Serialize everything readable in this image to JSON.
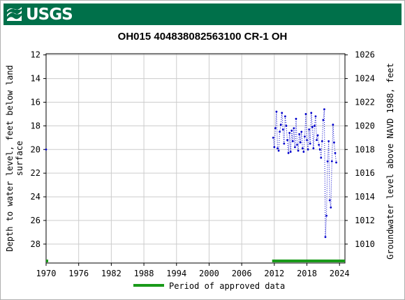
{
  "logo": {
    "text": "USGS"
  },
  "chart_data": {
    "type": "scatter",
    "title": "OH015 404838082563100 CR-1 OH",
    "ylabel_left": "Depth to water level, feet below land surface",
    "ylabel_right": "Groundwater level above NAVD 1988, feet",
    "xlim": [
      1970,
      2025
    ],
    "ylim": [
      29.6,
      11.9
    ],
    "y_ticks": [
      12,
      14,
      16,
      18,
      20,
      22,
      24,
      26,
      28
    ],
    "y2_ticks": [
      1026,
      1024,
      1022,
      1020,
      1018,
      1016,
      1014,
      1012,
      1010
    ],
    "x_ticks": [
      1970,
      1976,
      1982,
      1988,
      1994,
      2000,
      2006,
      2012,
      2018,
      2024
    ],
    "grid": true,
    "series": [
      {
        "color": "#0000cc",
        "points": [
          [
            1970.0,
            20.0
          ],
          [
            2011.8,
            19.0
          ],
          [
            2012.0,
            19.8
          ],
          [
            2012.2,
            18.2
          ],
          [
            2012.4,
            16.8
          ],
          [
            2012.6,
            19.9
          ],
          [
            2012.8,
            20.1
          ],
          [
            2013.0,
            18.5
          ],
          [
            2013.2,
            17.9
          ],
          [
            2013.4,
            16.9
          ],
          [
            2013.6,
            18.3
          ],
          [
            2013.8,
            19.5
          ],
          [
            2014.0,
            17.2
          ],
          [
            2014.2,
            18.0
          ],
          [
            2014.4,
            19.2
          ],
          [
            2014.6,
            20.3
          ],
          [
            2014.8,
            18.6
          ],
          [
            2015.0,
            20.2
          ],
          [
            2015.2,
            18.4
          ],
          [
            2015.4,
            19.3
          ],
          [
            2015.6,
            18.2
          ],
          [
            2015.8,
            19.8
          ],
          [
            2016.0,
            17.4
          ],
          [
            2016.2,
            19.6
          ],
          [
            2016.4,
            20.1
          ],
          [
            2016.6,
            18.7
          ],
          [
            2016.8,
            19.4
          ],
          [
            2017.0,
            18.5
          ],
          [
            2017.2,
            19.9
          ],
          [
            2017.4,
            20.2
          ],
          [
            2017.6,
            18.9
          ],
          [
            2017.8,
            17.0
          ],
          [
            2018.0,
            19.2
          ],
          [
            2018.2,
            20.0
          ],
          [
            2018.4,
            18.3
          ],
          [
            2018.6,
            19.5
          ],
          [
            2018.8,
            16.9
          ],
          [
            2019.0,
            18.1
          ],
          [
            2019.2,
            19.9
          ],
          [
            2019.4,
            18.0
          ],
          [
            2019.6,
            17.2
          ],
          [
            2019.8,
            19.2
          ],
          [
            2020.0,
            18.8
          ],
          [
            2020.2,
            19.6
          ],
          [
            2020.4,
            20.0
          ],
          [
            2020.6,
            20.7
          ],
          [
            2020.8,
            19.3
          ],
          [
            2021.0,
            17.5
          ],
          [
            2021.2,
            16.6
          ],
          [
            2021.4,
            27.4
          ],
          [
            2021.6,
            25.6
          ],
          [
            2021.8,
            21.0
          ],
          [
            2022.0,
            19.3
          ],
          [
            2022.2,
            24.3
          ],
          [
            2022.4,
            24.9
          ],
          [
            2022.6,
            21.0
          ],
          [
            2022.8,
            17.9
          ],
          [
            2023.0,
            19.4
          ],
          [
            2023.2,
            20.3
          ],
          [
            2023.4,
            21.1
          ]
        ]
      }
    ],
    "approved_periods": [
      [
        1970.0,
        1970.3
      ],
      [
        2011.6,
        2025.0
      ]
    ],
    "legend": {
      "label": "Period of approved data",
      "color": "#1a9a1a",
      "position": "bottom-center"
    }
  }
}
